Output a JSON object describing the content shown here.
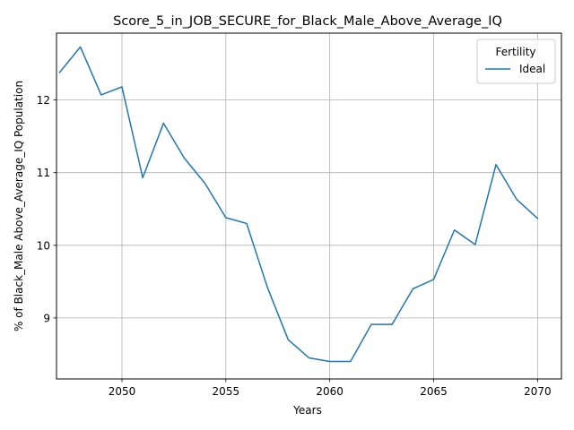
{
  "chart_data": {
    "type": "line",
    "title": "Score_5_in_JOB_SECURE_for_Black_Male_Above_Average_IQ",
    "xlabel": "Years",
    "ylabel": "% of Black_Male Above_Average_IQ Population",
    "xlim": [
      2046.85,
      2071.15
    ],
    "ylim": [
      8.16,
      12.92
    ],
    "xticks": [
      2050,
      2055,
      2060,
      2065,
      2070
    ],
    "yticks": [
      9,
      10,
      11,
      12
    ],
    "grid": true,
    "legend": {
      "title": "Fertility",
      "placement": "top-right"
    },
    "series": [
      {
        "name": "Ideal",
        "color": "#1f77b4",
        "x": [
          2047,
          2048,
          2049,
          2050,
          2051,
          2052,
          2053,
          2054,
          2055,
          2056,
          2057,
          2058,
          2059,
          2060,
          2061,
          2062,
          2063,
          2064,
          2065,
          2066,
          2067,
          2068,
          2069,
          2070
        ],
        "y": [
          12.38,
          12.73,
          12.07,
          12.18,
          10.93,
          11.68,
          11.2,
          10.85,
          10.38,
          10.3,
          9.42,
          8.7,
          8.45,
          8.4,
          8.4,
          8.91,
          8.91,
          9.4,
          9.53,
          10.21,
          10.01,
          11.11,
          10.63,
          10.37
        ]
      }
    ]
  }
}
